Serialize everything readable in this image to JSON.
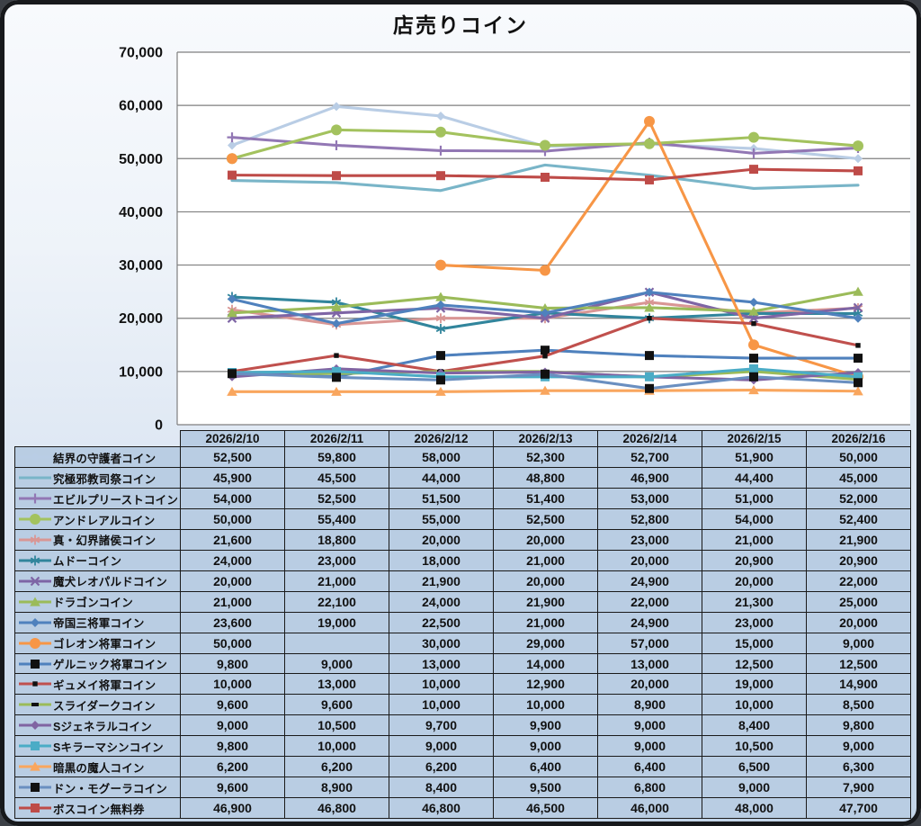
{
  "title": "店売りコイン",
  "palette": {
    "plot_bg": "#ffffff",
    "grid_line": "#7f7f7f",
    "axis_line": "#7f7f7f",
    "table_cell_bg": "#b9cde3",
    "table_border": "#1a1a1a",
    "text": "#111111",
    "black_marker": "#111111"
  },
  "chart_data": {
    "type": "line",
    "title": "店売りコイン",
    "xlabel": "",
    "ylabel": "",
    "ylim": [
      0,
      70000
    ],
    "ytick_interval": 10000,
    "y_tick_labels": [
      "0",
      "10,000",
      "20,000",
      "30,000",
      "40,000",
      "50,000",
      "60,000",
      "70,000"
    ],
    "grid": true,
    "legend_position": "data-table-left-column",
    "categories": [
      "2026/2/10",
      "2026/2/11",
      "2026/2/12",
      "2026/2/13",
      "2026/2/14",
      "2026/2/15",
      "2026/2/16"
    ],
    "series": [
      {
        "name": "結界の守護者コイン",
        "color": "#b9cde5",
        "marker": "diamond",
        "values": [
          52500,
          59800,
          58000,
          52300,
          52700,
          51900,
          50000
        ]
      },
      {
        "name": "究極邪教司祭コイン",
        "color": "#79b5c8",
        "marker": "none",
        "values": [
          45900,
          45500,
          44000,
          48800,
          46900,
          44400,
          45000
        ]
      },
      {
        "name": "エビルプリーストコイン",
        "color": "#9277b4",
        "marker": "plus",
        "values": [
          54000,
          52500,
          51500,
          51400,
          53000,
          51000,
          52000
        ]
      },
      {
        "name": "アンドレアルコイン",
        "color": "#a3c25e",
        "marker": "circle",
        "values": [
          50000,
          55400,
          55000,
          52500,
          52800,
          54000,
          52400
        ]
      },
      {
        "name": "真・幻界諸侯コイン",
        "color": "#d99694",
        "marker": "asterisk",
        "values": [
          21600,
          18800,
          20000,
          20000,
          23000,
          21000,
          21900
        ]
      },
      {
        "name": "ムドーコイン",
        "color": "#31859c",
        "marker": "asterisk",
        "values": [
          24000,
          23000,
          18000,
          21000,
          20000,
          20900,
          20900
        ]
      },
      {
        "name": "魔犬レオパルドコイン",
        "color": "#7e65a5",
        "marker": "x",
        "values": [
          20000,
          21000,
          21900,
          20000,
          24900,
          20000,
          22000
        ]
      },
      {
        "name": "ドラゴンコイン",
        "color": "#9bbb59",
        "marker": "triangle",
        "values": [
          21000,
          22100,
          24000,
          21900,
          22000,
          21300,
          25000
        ]
      },
      {
        "name": "帝国三将軍コイン",
        "color": "#4f81bd",
        "marker": "diamond",
        "values": [
          23600,
          19000,
          22500,
          21000,
          24900,
          23000,
          20000
        ]
      },
      {
        "name": "ゴレオン将軍コイン",
        "color": "#f79646",
        "marker": "circle",
        "values": [
          50000,
          null,
          30000,
          29000,
          57000,
          15000,
          9000
        ]
      },
      {
        "name": "ゲルニック将軍コイン",
        "color": "#4f81bd",
        "marker": "square",
        "marker_color": "#111111",
        "values": [
          9800,
          9000,
          13000,
          14000,
          13000,
          12500,
          12500
        ]
      },
      {
        "name": "ギュメイ将軍コイン",
        "color": "#c0504d",
        "marker": "small-square",
        "marker_color": "#111111",
        "values": [
          10000,
          13000,
          10000,
          12900,
          20000,
          19000,
          14900
        ]
      },
      {
        "name": "スライダークコイン",
        "color": "#9bbb59",
        "marker": "dash",
        "marker_color": "#111111",
        "values": [
          9600,
          9600,
          10000,
          10000,
          8900,
          10000,
          8500
        ]
      },
      {
        "name": "Sジェネラルコイン",
        "color": "#8064a2",
        "marker": "diamond",
        "values": [
          9000,
          10500,
          9700,
          9900,
          9000,
          8400,
          9800
        ]
      },
      {
        "name": "Sキラーマシンコイン",
        "color": "#4bacc6",
        "marker": "square",
        "values": [
          9800,
          10000,
          9000,
          9000,
          9000,
          10500,
          9000
        ]
      },
      {
        "name": "暗黒の魔人コイン",
        "color": "#f9a65e",
        "marker": "triangle",
        "values": [
          6200,
          6200,
          6200,
          6400,
          6400,
          6500,
          6300
        ]
      },
      {
        "name": "ドン・モグーラコイン",
        "color": "#6a8fc0",
        "marker": "square",
        "marker_color": "#111111",
        "values": [
          9600,
          8900,
          8400,
          9500,
          6800,
          9000,
          7900
        ]
      },
      {
        "name": "ボスコイン無料券",
        "color": "#be4b48",
        "marker": "square",
        "values": [
          46900,
          46800,
          46800,
          46500,
          46000,
          48000,
          47700
        ]
      }
    ]
  }
}
